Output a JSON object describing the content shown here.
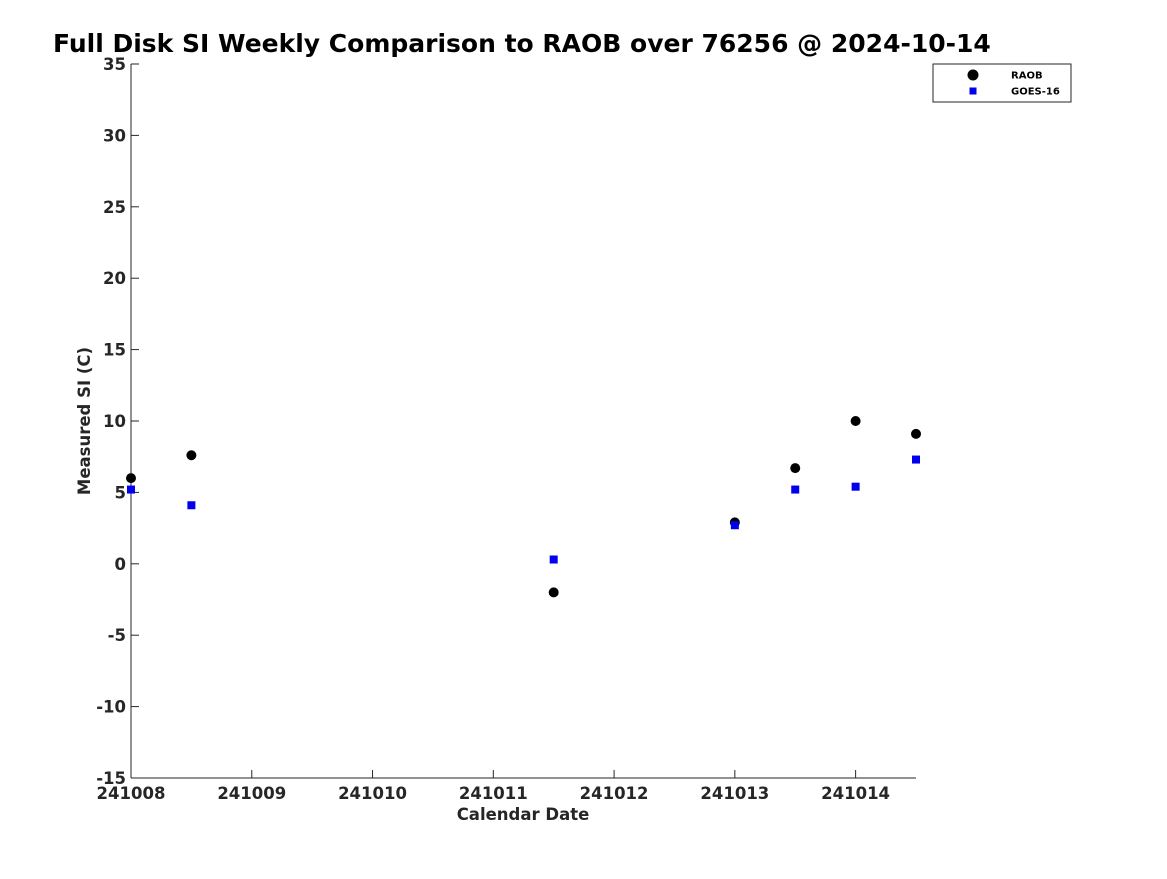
{
  "chart_data": {
    "type": "scatter",
    "title": "Full Disk SI Weekly Comparison to RAOB over 76256 @ 2024-10-14",
    "xlabel": "Calendar Date",
    "ylabel": "Measured SI (C)",
    "xlim": [
      "2024-10-08",
      "2024-10-14T12:00"
    ],
    "ylim": [
      -15,
      35
    ],
    "x_ticks": [
      "2024-10-08",
      "2024-10-09",
      "2024-10-10",
      "2024-10-11",
      "2024-10-12",
      "2024-10-13",
      "2024-10-14"
    ],
    "x_tick_labels": [
      "241008",
      "241009",
      "241010",
      "241011",
      "241012",
      "241013",
      "241014"
    ],
    "y_ticks": [
      -15,
      -10,
      -5,
      0,
      5,
      10,
      15,
      20,
      25,
      30,
      35
    ],
    "grid": false,
    "legend_position": "top-right",
    "series": [
      {
        "name": "RAOB",
        "marker": "circle",
        "color": "#000000",
        "points": [
          {
            "x": "2024-10-08T00:00",
            "y": 6.0
          },
          {
            "x": "2024-10-08T12:00",
            "y": 7.6
          },
          {
            "x": "2024-10-11T12:00",
            "y": -2.0
          },
          {
            "x": "2024-10-13T00:00",
            "y": 2.9
          },
          {
            "x": "2024-10-13T12:00",
            "y": 6.7
          },
          {
            "x": "2024-10-14T00:00",
            "y": 10.0
          },
          {
            "x": "2024-10-14T12:00",
            "y": 9.1
          }
        ]
      },
      {
        "name": "GOES-16",
        "marker": "square",
        "color": "#0000ee",
        "points": [
          {
            "x": "2024-10-08T00:00",
            "y": 5.2
          },
          {
            "x": "2024-10-08T12:00",
            "y": 4.1
          },
          {
            "x": "2024-10-11T12:00",
            "y": 0.3
          },
          {
            "x": "2024-10-13T00:00",
            "y": 2.7
          },
          {
            "x": "2024-10-13T12:00",
            "y": 5.2
          },
          {
            "x": "2024-10-14T00:00",
            "y": 5.4
          },
          {
            "x": "2024-10-14T12:00",
            "y": 7.3
          }
        ]
      }
    ]
  }
}
